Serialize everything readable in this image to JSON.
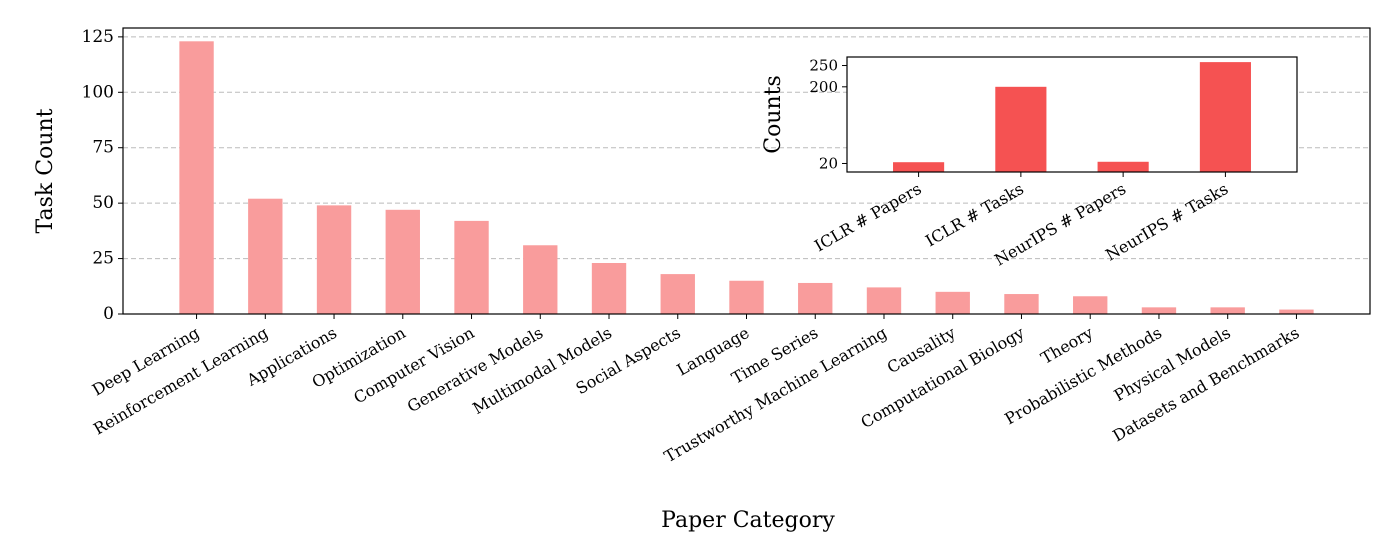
{
  "chart_data": [
    {
      "type": "bar",
      "x_label": "Paper Category",
      "y_label": "Task Count",
      "categories": [
        "Deep Learning",
        "Reinforcement Learning",
        "Applications",
        "Optimization",
        "Computer Vision",
        "Generative Models",
        "Multimodal Models",
        "Social Aspects",
        "Language",
        "Time Series",
        "Trustworthy Machine Learning",
        "Causality",
        "Computational Biology",
        "Theory",
        "Probabilistic Methods",
        "Physical Models",
        "Datasets and Benchmarks"
      ],
      "values": [
        123,
        52,
        49,
        47,
        42,
        31,
        23,
        18,
        15,
        14,
        12,
        10,
        9,
        8,
        3,
        3,
        2
      ],
      "color": "#f99c9c",
      "ylim": [
        0,
        129
      ],
      "yticks": [
        0,
        25,
        50,
        75,
        100,
        125
      ],
      "grid": true
    },
    {
      "type": "bar",
      "y_label": "Counts",
      "categories": [
        "ICLR # Papers",
        "ICLR # Tasks",
        "NeurIPS # Papers",
        "NeurIPS # Tasks"
      ],
      "values": [
        23,
        200,
        24,
        258
      ],
      "color": "#f55252",
      "ylim": [
        0,
        270
      ],
      "yticks": [
        20,
        200,
        250
      ],
      "grid": false
    }
  ]
}
